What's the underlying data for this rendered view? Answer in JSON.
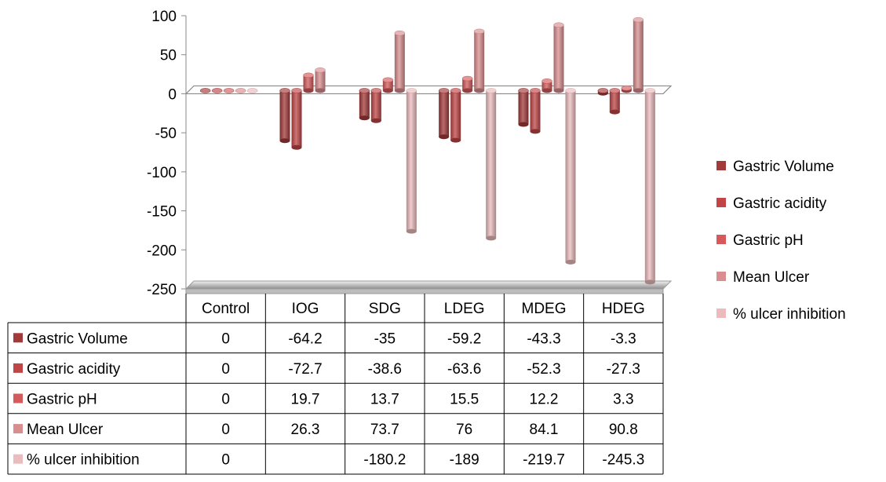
{
  "chart_data": {
    "type": "bar",
    "categories": [
      "Control",
      "IOG",
      "SDG",
      "LDEG",
      "MDEG",
      "HDEG"
    ],
    "series": [
      {
        "name": "Gastric Volume",
        "values": [
          0,
          -64.2,
          -35,
          -59.2,
          -43.3,
          -3.3
        ],
        "color": "#a33a3a"
      },
      {
        "name": "Gastric acidity",
        "values": [
          0,
          -72.7,
          -38.6,
          -63.6,
          -52.3,
          -27.3
        ],
        "color": "#bf4547"
      },
      {
        "name": "Gastric pH",
        "values": [
          0,
          19.7,
          13.7,
          15.5,
          12.2,
          3.3
        ],
        "color": "#d45a5b"
      },
      {
        "name": "Mean Ulcer",
        "values": [
          0,
          26.3,
          73.7,
          76,
          84.1,
          90.8
        ],
        "color": "#d88d8f"
      },
      {
        "name": "% ulcer inhibition",
        "values": [
          0,
          null,
          -180.2,
          -189,
          -219.7,
          -245.3
        ],
        "color": "#ebbcbd"
      }
    ],
    "table_values": [
      [
        "0",
        "-64.2",
        "-35",
        "-59.2",
        "-43.3",
        "-3.3"
      ],
      [
        "0",
        "-72.7",
        "-38.6",
        "-63.6",
        "-52.3",
        "-27.3"
      ],
      [
        "0",
        "19.7",
        "13.7",
        "15.5",
        "12.2",
        "3.3"
      ],
      [
        "0",
        "26.3",
        "73.7",
        "76",
        "84.1",
        "90.8"
      ],
      [
        "0",
        "",
        "-180.2",
        "-189",
        "-219.7",
        "-245.3"
      ]
    ],
    "yticks": [
      "100",
      "50",
      "0",
      "-50",
      "-100",
      "-150",
      "-200",
      "-250"
    ],
    "ylim": [
      -250,
      100
    ],
    "grid": false,
    "legend_position": "right",
    "style": "3d-cylinder"
  }
}
